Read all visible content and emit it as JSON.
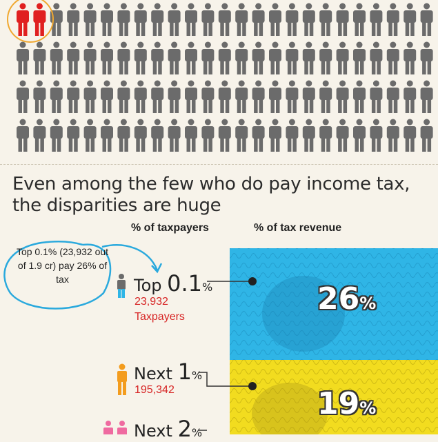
{
  "headline": "Even among the few who do pay income tax, the disparities are huge",
  "columns": {
    "taxpayers": "% of taxpayers",
    "revenue": "% of tax revenue"
  },
  "callout": "Top 0.1% (23,932 out of 1.9 cr) pay 26% of tax",
  "colors": {
    "highlight": "#e02020",
    "person": "#6b6b6b",
    "blue_note": "#2fb5e6",
    "yellow_note": "#f2dc1f",
    "orange": "#f39c1e",
    "pink": "#ef6aa0",
    "callout_line": "#2aa9dd"
  },
  "grid": {
    "rows": 4,
    "cols": 25,
    "highlighted": 2
  },
  "tiers": [
    {
      "prefix": "Top",
      "value": "0.1",
      "unit": "%",
      "count": "23,932",
      "count_label": "Taxpayers",
      "revenue": "26",
      "revenue_unit": "%"
    },
    {
      "prefix": "Next",
      "value": "1",
      "unit": "%",
      "count": "195,342",
      "revenue": "19",
      "revenue_unit": "%"
    },
    {
      "prefix": "Next",
      "value": "2",
      "unit": "%"
    }
  ]
}
